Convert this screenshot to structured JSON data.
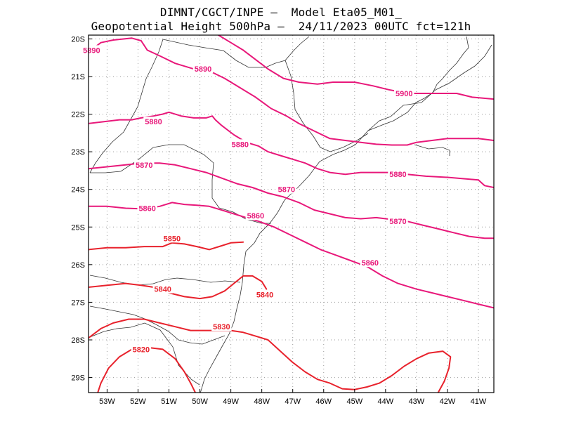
{
  "header": {
    "line1": "DIMNT/CGCT/INPE –  Model Eta05_M01_",
    "line2": "Geopotential Height 500hPa –  24/11/2023 00UTC fct=121h"
  },
  "map": {
    "lon_range": [
      -53.6,
      -40.5
    ],
    "lat_range": [
      -29.4,
      -19.9
    ],
    "x_ticks": [
      {
        "lon": -53,
        "label": "53W"
      },
      {
        "lon": -52,
        "label": "52W"
      },
      {
        "lon": -51,
        "label": "51W"
      },
      {
        "lon": -50,
        "label": "50W"
      },
      {
        "lon": -49,
        "label": "49W"
      },
      {
        "lon": -48,
        "label": "48W"
      },
      {
        "lon": -47,
        "label": "47W"
      },
      {
        "lon": -46,
        "label": "46W"
      },
      {
        "lon": -45,
        "label": "45W"
      },
      {
        "lon": -44,
        "label": "44W"
      },
      {
        "lon": -43,
        "label": "43W"
      },
      {
        "lon": -42,
        "label": "42W"
      },
      {
        "lon": -41,
        "label": "41W"
      }
    ],
    "y_ticks": [
      {
        "lat": -20,
        "label": "20S"
      },
      {
        "lat": -21,
        "label": "21S"
      },
      {
        "lat": -22,
        "label": "22S"
      },
      {
        "lat": -23,
        "label": "23S"
      },
      {
        "lat": -24,
        "label": "24S"
      },
      {
        "lat": -25,
        "label": "25S"
      },
      {
        "lat": -26,
        "label": "26S"
      },
      {
        "lat": -27,
        "label": "27S"
      },
      {
        "lat": -28,
        "label": "28S"
      },
      {
        "lat": -29,
        "label": "29S"
      }
    ],
    "grid": true,
    "colors": {
      "contour_low": "#e8222c",
      "contour_high": "#e8187a",
      "coast": "#333333",
      "grid": "#9a9a9a"
    },
    "contours": [
      {
        "value": 5890,
        "labels": [
          {
            "text": "5890",
            "lon": -53.5,
            "lat": -20.3
          },
          {
            "text": "5890",
            "lon": -49.9,
            "lat": -20.8
          }
        ],
        "points": [
          [
            -53.6,
            -20.35
          ],
          [
            -53.2,
            -20.1
          ],
          [
            -52.8,
            -20.03
          ],
          [
            -52.2,
            -19.98
          ],
          [
            -51.9,
            -20.05
          ],
          [
            -51.7,
            -20.3
          ],
          [
            -51.3,
            -20.45
          ],
          [
            -50.8,
            -20.65
          ],
          [
            -50.2,
            -20.8
          ],
          [
            -49.7,
            -20.85
          ],
          [
            -49.2,
            -21.05
          ],
          [
            -48.7,
            -21.3
          ],
          [
            -48.2,
            -21.55
          ],
          [
            -47.7,
            -21.85
          ],
          [
            -47.2,
            -22.05
          ],
          [
            -46.8,
            -22.25
          ],
          [
            -46.3,
            -22.45
          ],
          [
            -45.8,
            -22.65
          ],
          [
            -45.3,
            -22.7
          ],
          [
            -44.8,
            -22.75
          ],
          [
            -44.3,
            -22.8
          ],
          [
            -43.8,
            -22.82
          ],
          [
            -43.3,
            -22.82
          ],
          [
            -43.0,
            -22.75
          ],
          [
            -42.5,
            -22.7
          ],
          [
            -42.0,
            -22.65
          ],
          [
            -41.5,
            -22.65
          ],
          [
            -41.0,
            -22.65
          ],
          [
            -40.5,
            -22.7
          ]
        ]
      },
      {
        "value": 5900,
        "labels": [
          {
            "text": "5900",
            "lon": -43.4,
            "lat": -21.45
          }
        ],
        "points": [
          [
            -49.4,
            -19.9
          ],
          [
            -49.0,
            -20.1
          ],
          [
            -48.6,
            -20.3
          ],
          [
            -48.2,
            -20.55
          ],
          [
            -47.8,
            -20.8
          ],
          [
            -47.3,
            -21.05
          ],
          [
            -46.8,
            -21.15
          ],
          [
            -46.2,
            -21.2
          ],
          [
            -45.7,
            -21.15
          ],
          [
            -45.0,
            -21.15
          ],
          [
            -44.4,
            -21.25
          ],
          [
            -43.9,
            -21.35
          ],
          [
            -43.3,
            -21.45
          ],
          [
            -42.8,
            -21.45
          ],
          [
            -42.2,
            -21.45
          ],
          [
            -41.7,
            -21.45
          ],
          [
            -41.2,
            -21.55
          ],
          [
            -40.5,
            -21.6
          ]
        ]
      },
      {
        "value": 5880,
        "labels": [
          {
            "text": "5880",
            "lon": -51.5,
            "lat": -22.2
          },
          {
            "text": "5880",
            "lon": -48.7,
            "lat": -22.8
          },
          {
            "text": "5880",
            "lon": -43.6,
            "lat": -23.6
          }
        ],
        "points": [
          [
            -53.6,
            -22.25
          ],
          [
            -53.1,
            -22.2
          ],
          [
            -52.6,
            -22.15
          ],
          [
            -52.2,
            -22.15
          ],
          [
            -51.9,
            -22.1
          ],
          [
            -51.5,
            -22.05
          ],
          [
            -51.2,
            -22.0
          ],
          [
            -51.0,
            -21.95
          ],
          [
            -50.6,
            -22.05
          ],
          [
            -50.2,
            -22.1
          ],
          [
            -49.8,
            -22.1
          ],
          [
            -49.6,
            -22.05
          ],
          [
            -49.5,
            -22.15
          ],
          [
            -49.3,
            -22.3
          ],
          [
            -48.9,
            -22.55
          ],
          [
            -48.5,
            -22.75
          ],
          [
            -48.1,
            -22.85
          ],
          [
            -47.8,
            -23.0
          ],
          [
            -47.4,
            -23.1
          ],
          [
            -47.0,
            -23.2
          ],
          [
            -46.6,
            -23.3
          ],
          [
            -46.2,
            -23.45
          ],
          [
            -45.8,
            -23.55
          ],
          [
            -45.3,
            -23.6
          ],
          [
            -44.8,
            -23.55
          ],
          [
            -44.3,
            -23.55
          ],
          [
            -43.8,
            -23.55
          ],
          [
            -43.3,
            -23.6
          ],
          [
            -42.7,
            -23.65
          ],
          [
            -42.0,
            -23.68
          ],
          [
            -41.4,
            -23.72
          ],
          [
            -41.0,
            -23.75
          ],
          [
            -40.8,
            -23.9
          ],
          [
            -40.5,
            -23.95
          ]
        ]
      },
      {
        "value": 5870,
        "labels": [
          {
            "text": "5870",
            "lon": -51.8,
            "lat": -23.35
          },
          {
            "text": "5870",
            "lon": -47.2,
            "lat": -24.0
          },
          {
            "text": "5870",
            "lon": -43.6,
            "lat": -24.85
          }
        ],
        "points": [
          [
            -53.6,
            -23.45
          ],
          [
            -53.0,
            -23.4
          ],
          [
            -52.4,
            -23.35
          ],
          [
            -51.9,
            -23.3
          ],
          [
            -51.3,
            -23.3
          ],
          [
            -50.8,
            -23.35
          ],
          [
            -50.3,
            -23.45
          ],
          [
            -49.8,
            -23.55
          ],
          [
            -49.3,
            -23.7
          ],
          [
            -48.8,
            -23.85
          ],
          [
            -48.3,
            -23.95
          ],
          [
            -47.8,
            -24.1
          ],
          [
            -47.3,
            -24.2
          ],
          [
            -46.8,
            -24.35
          ],
          [
            -46.3,
            -24.55
          ],
          [
            -45.8,
            -24.65
          ],
          [
            -45.3,
            -24.75
          ],
          [
            -44.8,
            -24.78
          ],
          [
            -44.3,
            -24.75
          ],
          [
            -43.8,
            -24.8
          ],
          [
            -43.3,
            -24.85
          ],
          [
            -42.8,
            -24.95
          ],
          [
            -42.3,
            -25.05
          ],
          [
            -41.8,
            -25.15
          ],
          [
            -41.3,
            -25.25
          ],
          [
            -40.8,
            -25.3
          ],
          [
            -40.5,
            -25.3
          ]
        ]
      },
      {
        "value": 5860,
        "labels": [
          {
            "text": "5860",
            "lon": -51.7,
            "lat": -24.5
          },
          {
            "text": "5860",
            "lon": -48.2,
            "lat": -24.7
          },
          {
            "text": "5860",
            "lon": -44.5,
            "lat": -25.95
          }
        ],
        "points": [
          [
            -53.6,
            -24.45
          ],
          [
            -53.0,
            -24.45
          ],
          [
            -52.4,
            -24.5
          ],
          [
            -51.8,
            -24.52
          ],
          [
            -51.3,
            -24.45
          ],
          [
            -50.9,
            -24.35
          ],
          [
            -50.5,
            -24.4
          ],
          [
            -50.1,
            -24.42
          ],
          [
            -49.7,
            -24.45
          ],
          [
            -49.3,
            -24.55
          ],
          [
            -48.9,
            -24.65
          ],
          [
            -48.5,
            -24.75
          ],
          [
            -48.1,
            -24.85
          ],
          [
            -47.6,
            -25.0
          ],
          [
            -47.1,
            -25.2
          ],
          [
            -46.6,
            -25.4
          ],
          [
            -46.1,
            -25.6
          ],
          [
            -45.6,
            -25.75
          ],
          [
            -45.1,
            -25.9
          ],
          [
            -44.6,
            -26.05
          ],
          [
            -44.1,
            -26.3
          ],
          [
            -43.6,
            -26.5
          ],
          [
            -43.0,
            -26.65
          ],
          [
            -42.5,
            -26.75
          ],
          [
            -42.0,
            -26.85
          ],
          [
            -41.5,
            -26.95
          ],
          [
            -41.0,
            -27.05
          ],
          [
            -40.5,
            -27.15
          ]
        ]
      },
      {
        "value": 5850,
        "labels": [
          {
            "text": "5850",
            "lon": -50.9,
            "lat": -25.3
          }
        ],
        "points": [
          [
            -53.6,
            -25.6
          ],
          [
            -53.0,
            -25.55
          ],
          [
            -52.4,
            -25.55
          ],
          [
            -51.8,
            -25.52
          ],
          [
            -51.2,
            -25.52
          ],
          [
            -50.9,
            -25.42
          ],
          [
            -50.5,
            -25.45
          ],
          [
            -50.1,
            -25.52
          ],
          [
            -49.7,
            -25.6
          ],
          [
            -49.3,
            -25.5
          ],
          [
            -49.0,
            -25.42
          ],
          [
            -48.6,
            -25.4
          ]
        ]
      },
      {
        "value": 5840,
        "labels": [
          {
            "text": "5840",
            "lon": -51.2,
            "lat": -26.65
          },
          {
            "text": "5840",
            "lon": -47.9,
            "lat": -26.8
          }
        ],
        "points": [
          [
            -53.6,
            -26.6
          ],
          [
            -53.0,
            -26.55
          ],
          [
            -52.4,
            -26.5
          ],
          [
            -51.9,
            -26.55
          ],
          [
            -51.5,
            -26.6
          ],
          [
            -51.0,
            -26.75
          ],
          [
            -50.5,
            -26.85
          ],
          [
            -50.0,
            -26.9
          ],
          [
            -49.6,
            -26.85
          ],
          [
            -49.2,
            -26.7
          ],
          [
            -48.9,
            -26.5
          ],
          [
            -48.6,
            -26.3
          ],
          [
            -48.3,
            -26.3
          ],
          [
            -48.0,
            -26.45
          ],
          [
            -47.85,
            -26.65
          ]
        ]
      },
      {
        "value": 5830,
        "labels": [
          {
            "text": "5830",
            "lon": -49.3,
            "lat": -27.65
          }
        ],
        "points": [
          [
            -53.6,
            -27.95
          ],
          [
            -53.2,
            -27.7
          ],
          [
            -52.8,
            -27.55
          ],
          [
            -52.3,
            -27.45
          ],
          [
            -51.8,
            -27.45
          ],
          [
            -51.3,
            -27.55
          ],
          [
            -50.8,
            -27.65
          ],
          [
            -50.3,
            -27.75
          ],
          [
            -49.8,
            -27.75
          ],
          [
            -49.4,
            -27.75
          ],
          [
            -49.0,
            -27.75
          ],
          [
            -48.6,
            -27.8
          ],
          [
            -48.2,
            -27.9
          ],
          [
            -47.8,
            -28.0
          ],
          [
            -47.4,
            -28.3
          ],
          [
            -47.0,
            -28.6
          ],
          [
            -46.6,
            -28.85
          ],
          [
            -46.2,
            -29.05
          ],
          [
            -45.8,
            -29.15
          ],
          [
            -45.4,
            -29.3
          ],
          [
            -45.0,
            -29.32
          ],
          [
            -44.6,
            -29.25
          ],
          [
            -44.2,
            -29.15
          ],
          [
            -43.8,
            -28.95
          ],
          [
            -43.4,
            -28.7
          ],
          [
            -43.0,
            -28.5
          ],
          [
            -42.6,
            -28.35
          ],
          [
            -42.15,
            -28.3
          ],
          [
            -41.9,
            -28.45
          ],
          [
            -41.95,
            -28.75
          ],
          [
            -42.1,
            -29.1
          ],
          [
            -42.3,
            -29.4
          ]
        ]
      },
      {
        "value": 5820,
        "labels": [
          {
            "text": "5820",
            "lon": -51.9,
            "lat": -28.25
          }
        ],
        "points": [
          [
            -53.3,
            -29.4
          ],
          [
            -53.2,
            -29.15
          ],
          [
            -52.95,
            -28.75
          ],
          [
            -52.6,
            -28.45
          ],
          [
            -52.2,
            -28.25
          ],
          [
            -51.7,
            -28.2
          ],
          [
            -51.2,
            -28.25
          ],
          [
            -50.8,
            -28.5
          ],
          [
            -50.5,
            -28.85
          ],
          [
            -50.3,
            -29.15
          ],
          [
            -50.15,
            -29.4
          ]
        ]
      }
    ]
  }
}
